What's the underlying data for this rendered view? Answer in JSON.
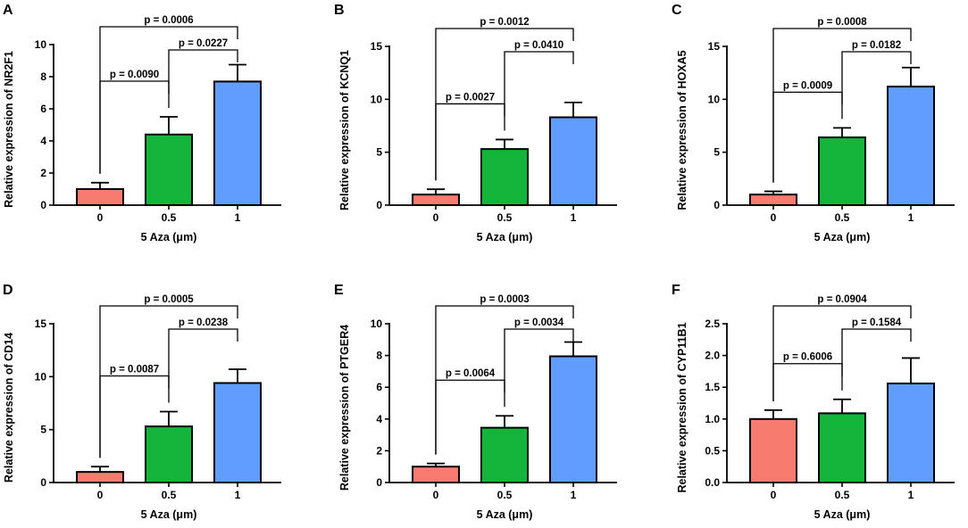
{
  "chart_data": [
    {
      "panel": "A",
      "type": "bar",
      "xlabel": "5 Aza (μm)",
      "ylabel": "Relative expression of NR2F1",
      "categories": [
        "0",
        "0.5",
        "1"
      ],
      "values": [
        1.0,
        4.4,
        7.7
      ],
      "errors": [
        0.4,
        1.1,
        1.05
      ],
      "ylim": [
        0,
        10
      ],
      "yticks": [
        "0",
        "2",
        "4",
        "6",
        "8",
        "10"
      ],
      "comparisons": [
        {
          "from": 0,
          "to": 2,
          "label": "p = 0.0006"
        },
        {
          "from": 1,
          "to": 2,
          "label": "p = 0.0227"
        },
        {
          "from": 0,
          "to": 1,
          "label": "p = 0.0090"
        }
      ]
    },
    {
      "panel": "B",
      "type": "bar",
      "xlabel": "5 Aza (μm)",
      "ylabel": "Relative expression of KCNQ1",
      "categories": [
        "0",
        "0.5",
        "1"
      ],
      "values": [
        1.0,
        5.3,
        8.3
      ],
      "errors": [
        0.5,
        0.9,
        1.4
      ],
      "ylim": [
        0,
        15
      ],
      "yticks": [
        "0",
        "5",
        "10",
        "15"
      ],
      "comparisons": [
        {
          "from": 0,
          "to": 2,
          "label": "p = 0.0012"
        },
        {
          "from": 1,
          "to": 2,
          "label": "p = 0.0410"
        },
        {
          "from": 0,
          "to": 1,
          "label": "p = 0.0027"
        }
      ]
    },
    {
      "panel": "C",
      "type": "bar",
      "xlabel": "5 Aza (μm)",
      "ylabel": "Relative expression of HOXA5",
      "categories": [
        "0",
        "0.5",
        "1"
      ],
      "values": [
        1.0,
        6.4,
        11.2
      ],
      "errors": [
        0.3,
        0.9,
        1.8
      ],
      "ylim": [
        0,
        15
      ],
      "yticks": [
        "0",
        "5",
        "10",
        "15"
      ],
      "comparisons": [
        {
          "from": 0,
          "to": 2,
          "label": "p = 0.0008"
        },
        {
          "from": 1,
          "to": 2,
          "label": "p = 0.0182"
        },
        {
          "from": 0,
          "to": 1,
          "label": "p = 0.0009"
        }
      ]
    },
    {
      "panel": "D",
      "type": "bar",
      "xlabel": "5 Aza (μm)",
      "ylabel": "Relative expression of CD14",
      "categories": [
        "0",
        "0.5",
        "1"
      ],
      "values": [
        1.0,
        5.3,
        9.4
      ],
      "errors": [
        0.5,
        1.4,
        1.3
      ],
      "ylim": [
        0,
        15
      ],
      "yticks": [
        "0",
        "5",
        "10",
        "15"
      ],
      "comparisons": [
        {
          "from": 0,
          "to": 2,
          "label": "p = 0.0005"
        },
        {
          "from": 1,
          "to": 2,
          "label": "p = 0.0238"
        },
        {
          "from": 0,
          "to": 1,
          "label": "p = 0.0087"
        }
      ]
    },
    {
      "panel": "E",
      "type": "bar",
      "xlabel": "5 Aza (μm)",
      "ylabel": "Relative expression of PTGER4",
      "categories": [
        "0",
        "0.5",
        "1"
      ],
      "values": [
        1.0,
        3.45,
        7.95
      ],
      "errors": [
        0.2,
        0.75,
        0.9
      ],
      "ylim": [
        0,
        10
      ],
      "yticks": [
        "0",
        "2",
        "4",
        "6",
        "8",
        "10"
      ],
      "comparisons": [
        {
          "from": 0,
          "to": 2,
          "label": "p = 0.0003"
        },
        {
          "from": 1,
          "to": 2,
          "label": "p = 0.0034"
        },
        {
          "from": 0,
          "to": 1,
          "label": "p = 0.0064"
        }
      ]
    },
    {
      "panel": "F",
      "type": "bar",
      "xlabel": "5 Aza (μm)",
      "ylabel": "Relative expression of CYP11B1",
      "categories": [
        "0",
        "0.5",
        "1"
      ],
      "values": [
        1.0,
        1.09,
        1.56
      ],
      "errors": [
        0.14,
        0.22,
        0.4
      ],
      "ylim": [
        0,
        2.5
      ],
      "yticks": [
        "0.0",
        "0.5",
        "1.0",
        "1.5",
        "2.0",
        "2.5"
      ],
      "comparisons": [
        {
          "from": 0,
          "to": 2,
          "label": "p = 0.0904"
        },
        {
          "from": 1,
          "to": 2,
          "label": "p = 0.1584"
        },
        {
          "from": 0,
          "to": 1,
          "label": "p = 0.6006"
        }
      ]
    }
  ],
  "colors": {
    "bar_0": "#f87b6f",
    "bar_0.5": "#14b53a",
    "bar_1": "#619dff",
    "outline": "#000000"
  }
}
